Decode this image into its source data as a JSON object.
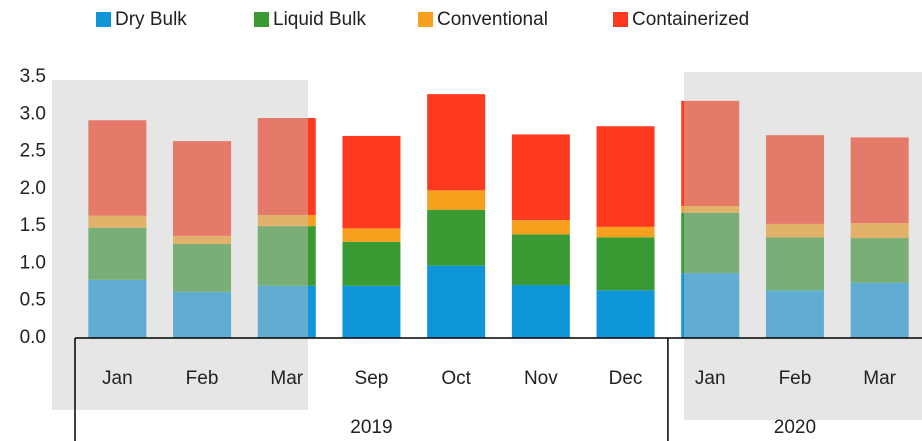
{
  "chart_data": {
    "type": "stacked_bar",
    "groups": [
      {
        "label": "2019",
        "categories": [
          "Jan",
          "Feb",
          "Mar",
          "Sep",
          "Oct",
          "Nov",
          "Dec"
        ]
      },
      {
        "label": "2020",
        "categories": [
          "Jan",
          "Feb",
          "Mar"
        ]
      }
    ],
    "series": [
      {
        "name": "Dry Bulk",
        "color": "#0e96d9",
        "values": [
          0.78,
          0.62,
          0.7,
          0.7,
          0.97,
          0.71,
          0.64,
          0.87,
          0.64,
          0.74
        ]
      },
      {
        "name": "Liquid Bulk",
        "color": "#3a9a33",
        "values": [
          0.7,
          0.64,
          0.8,
          0.59,
          0.75,
          0.68,
          0.71,
          0.81,
          0.71,
          0.6
        ]
      },
      {
        "name": "Conventional",
        "color": "#f7a01e",
        "values": [
          0.16,
          0.11,
          0.15,
          0.18,
          0.26,
          0.19,
          0.14,
          0.09,
          0.18,
          0.2
        ]
      },
      {
        "name": "Containerized",
        "color": "#fe3a1e",
        "values": [
          1.28,
          1.27,
          1.3,
          1.24,
          1.29,
          1.15,
          1.35,
          1.41,
          1.19,
          1.15
        ]
      }
    ],
    "ylim": [
      0,
      3.5
    ],
    "yticks": [
      {
        "value": 0,
        "label": "0.0"
      },
      0.5,
      {
        "value": 1,
        "label": "1.0"
      },
      1.5,
      {
        "value": 2,
        "label": "2.0"
      },
      2.5,
      {
        "value": 3,
        "label": "3.0"
      },
      3.5
    ],
    "legend": "top",
    "grid": false
  }
}
